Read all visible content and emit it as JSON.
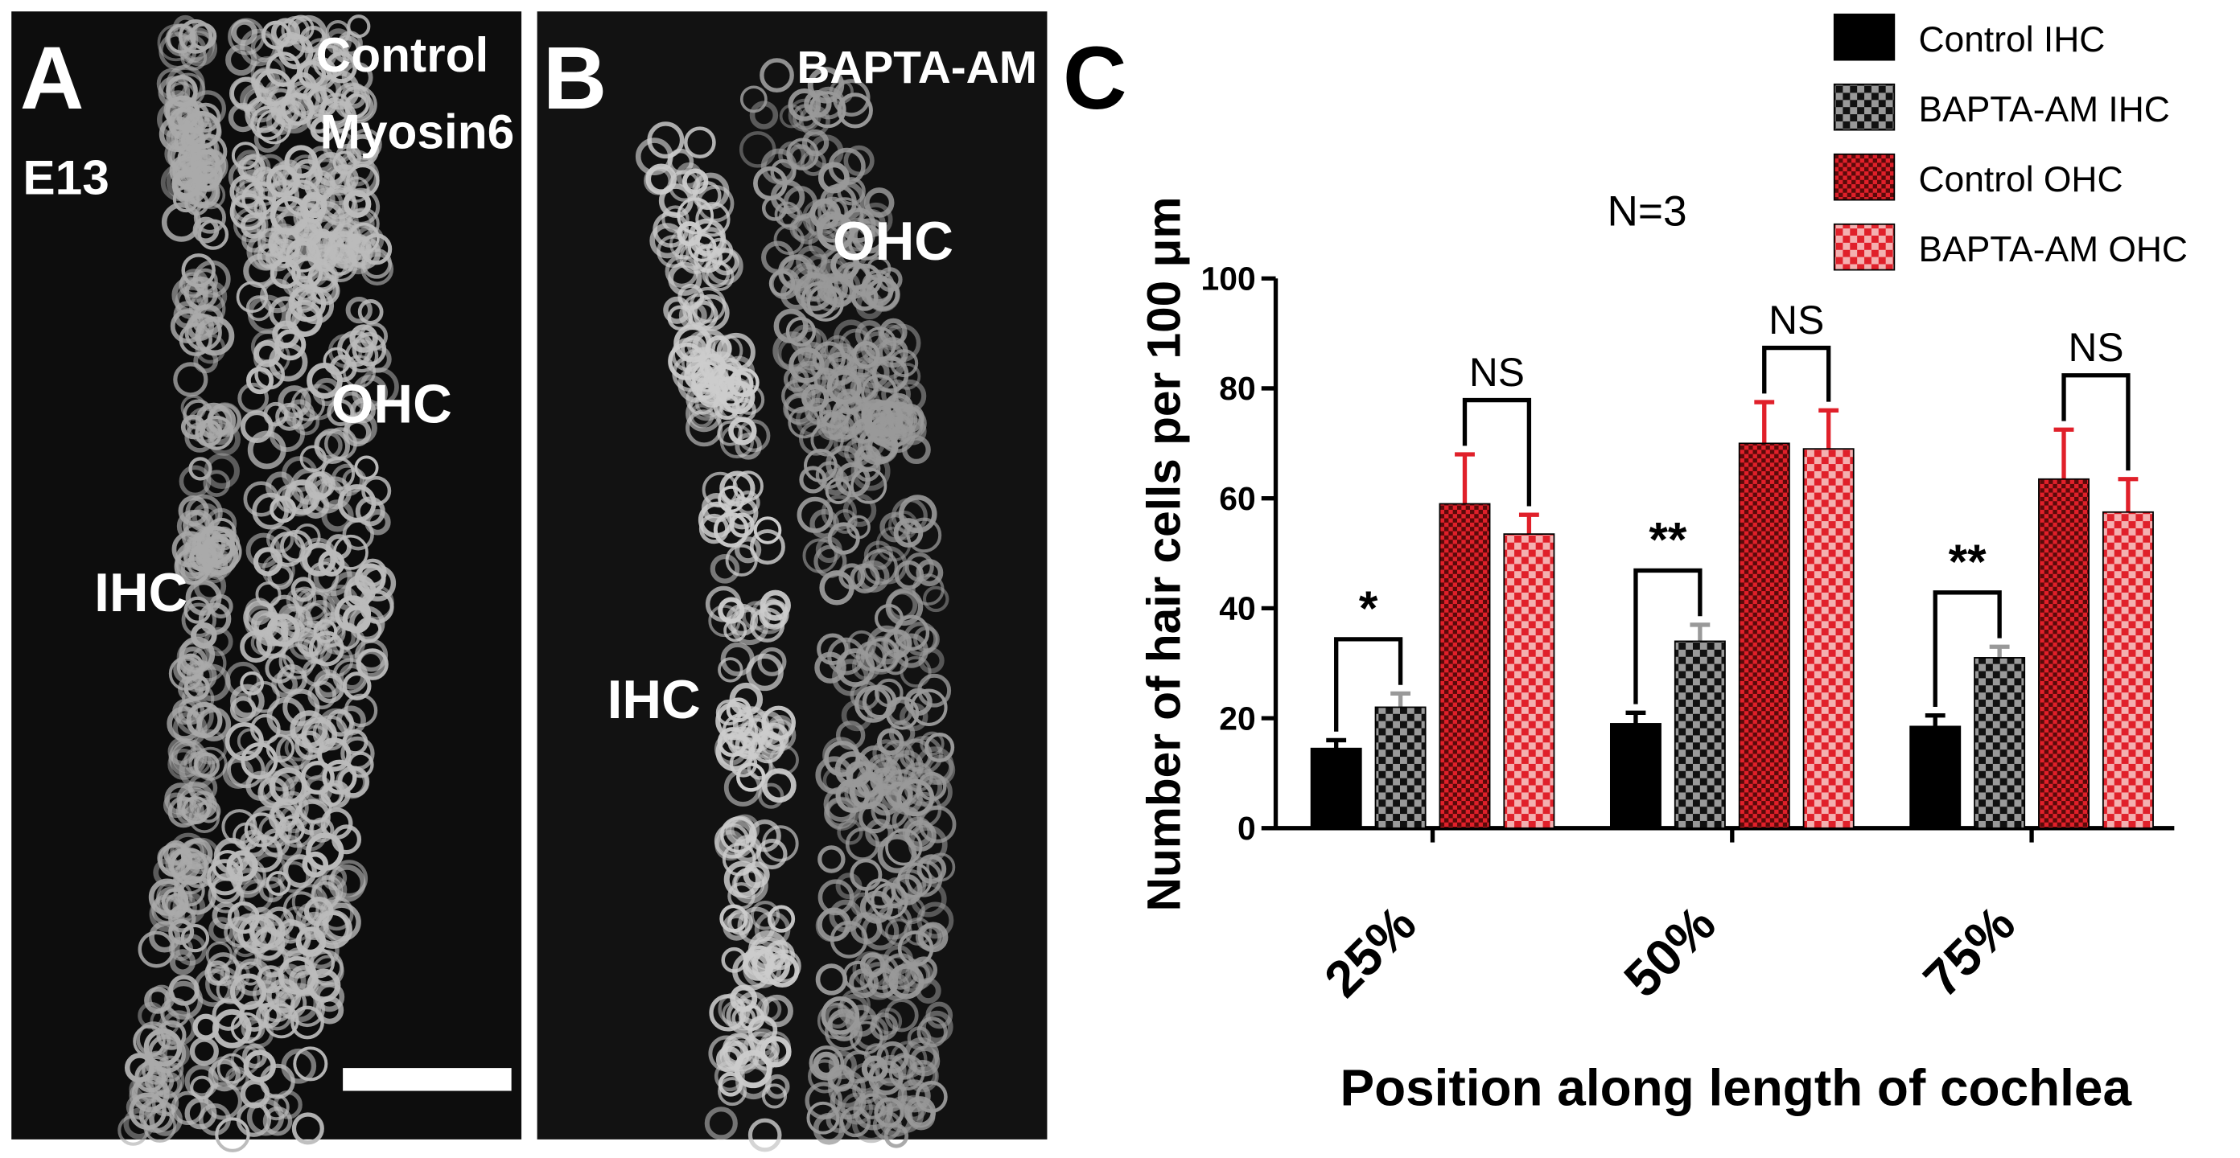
{
  "panels": {
    "a_letter": "A",
    "a_stage": "E13",
    "a_condition": "Control",
    "a_marker": "Myosin6",
    "a_ohc": "OHC",
    "a_ihc": "IHC",
    "b_letter": "B",
    "b_condition": "BAPTA-AM",
    "b_ohc": "OHC",
    "b_ihc": "IHC",
    "c_letter": "C"
  },
  "chart_data": {
    "type": "bar",
    "annotation": "N=3",
    "y_label": "Number of hair cells per 100 μm",
    "x_label": "Position along length of cochlea",
    "categories": [
      "25%",
      "50%",
      "75%"
    ],
    "series": [
      {
        "name": "Control IHC",
        "color": "#000000",
        "values": [
          14.5,
          19,
          18.5
        ],
        "errors": [
          1.5,
          2,
          2
        ]
      },
      {
        "name": "BAPTA-AM IHC",
        "color": "#999999",
        "values": [
          22,
          34,
          31
        ],
        "errors": [
          2.5,
          3,
          2
        ]
      },
      {
        "name": "Control OHC",
        "color": "#e0202a",
        "values": [
          59,
          70,
          63.5
        ],
        "errors": [
          9,
          7.5,
          9
        ]
      },
      {
        "name": "BAPTA-AM OHC",
        "color": "#e0202a",
        "values": [
          53.5,
          69,
          57.5
        ],
        "errors": [
          3.5,
          7,
          6
        ]
      }
    ],
    "ihc_significance": [
      "*",
      "**",
      "**"
    ],
    "ohc_significance": [
      "NS",
      "NS",
      "NS"
    ],
    "ylim": [
      0,
      100
    ],
    "yticks": [
      0,
      20,
      40,
      60,
      80,
      100
    ],
    "legend": "top-right"
  }
}
